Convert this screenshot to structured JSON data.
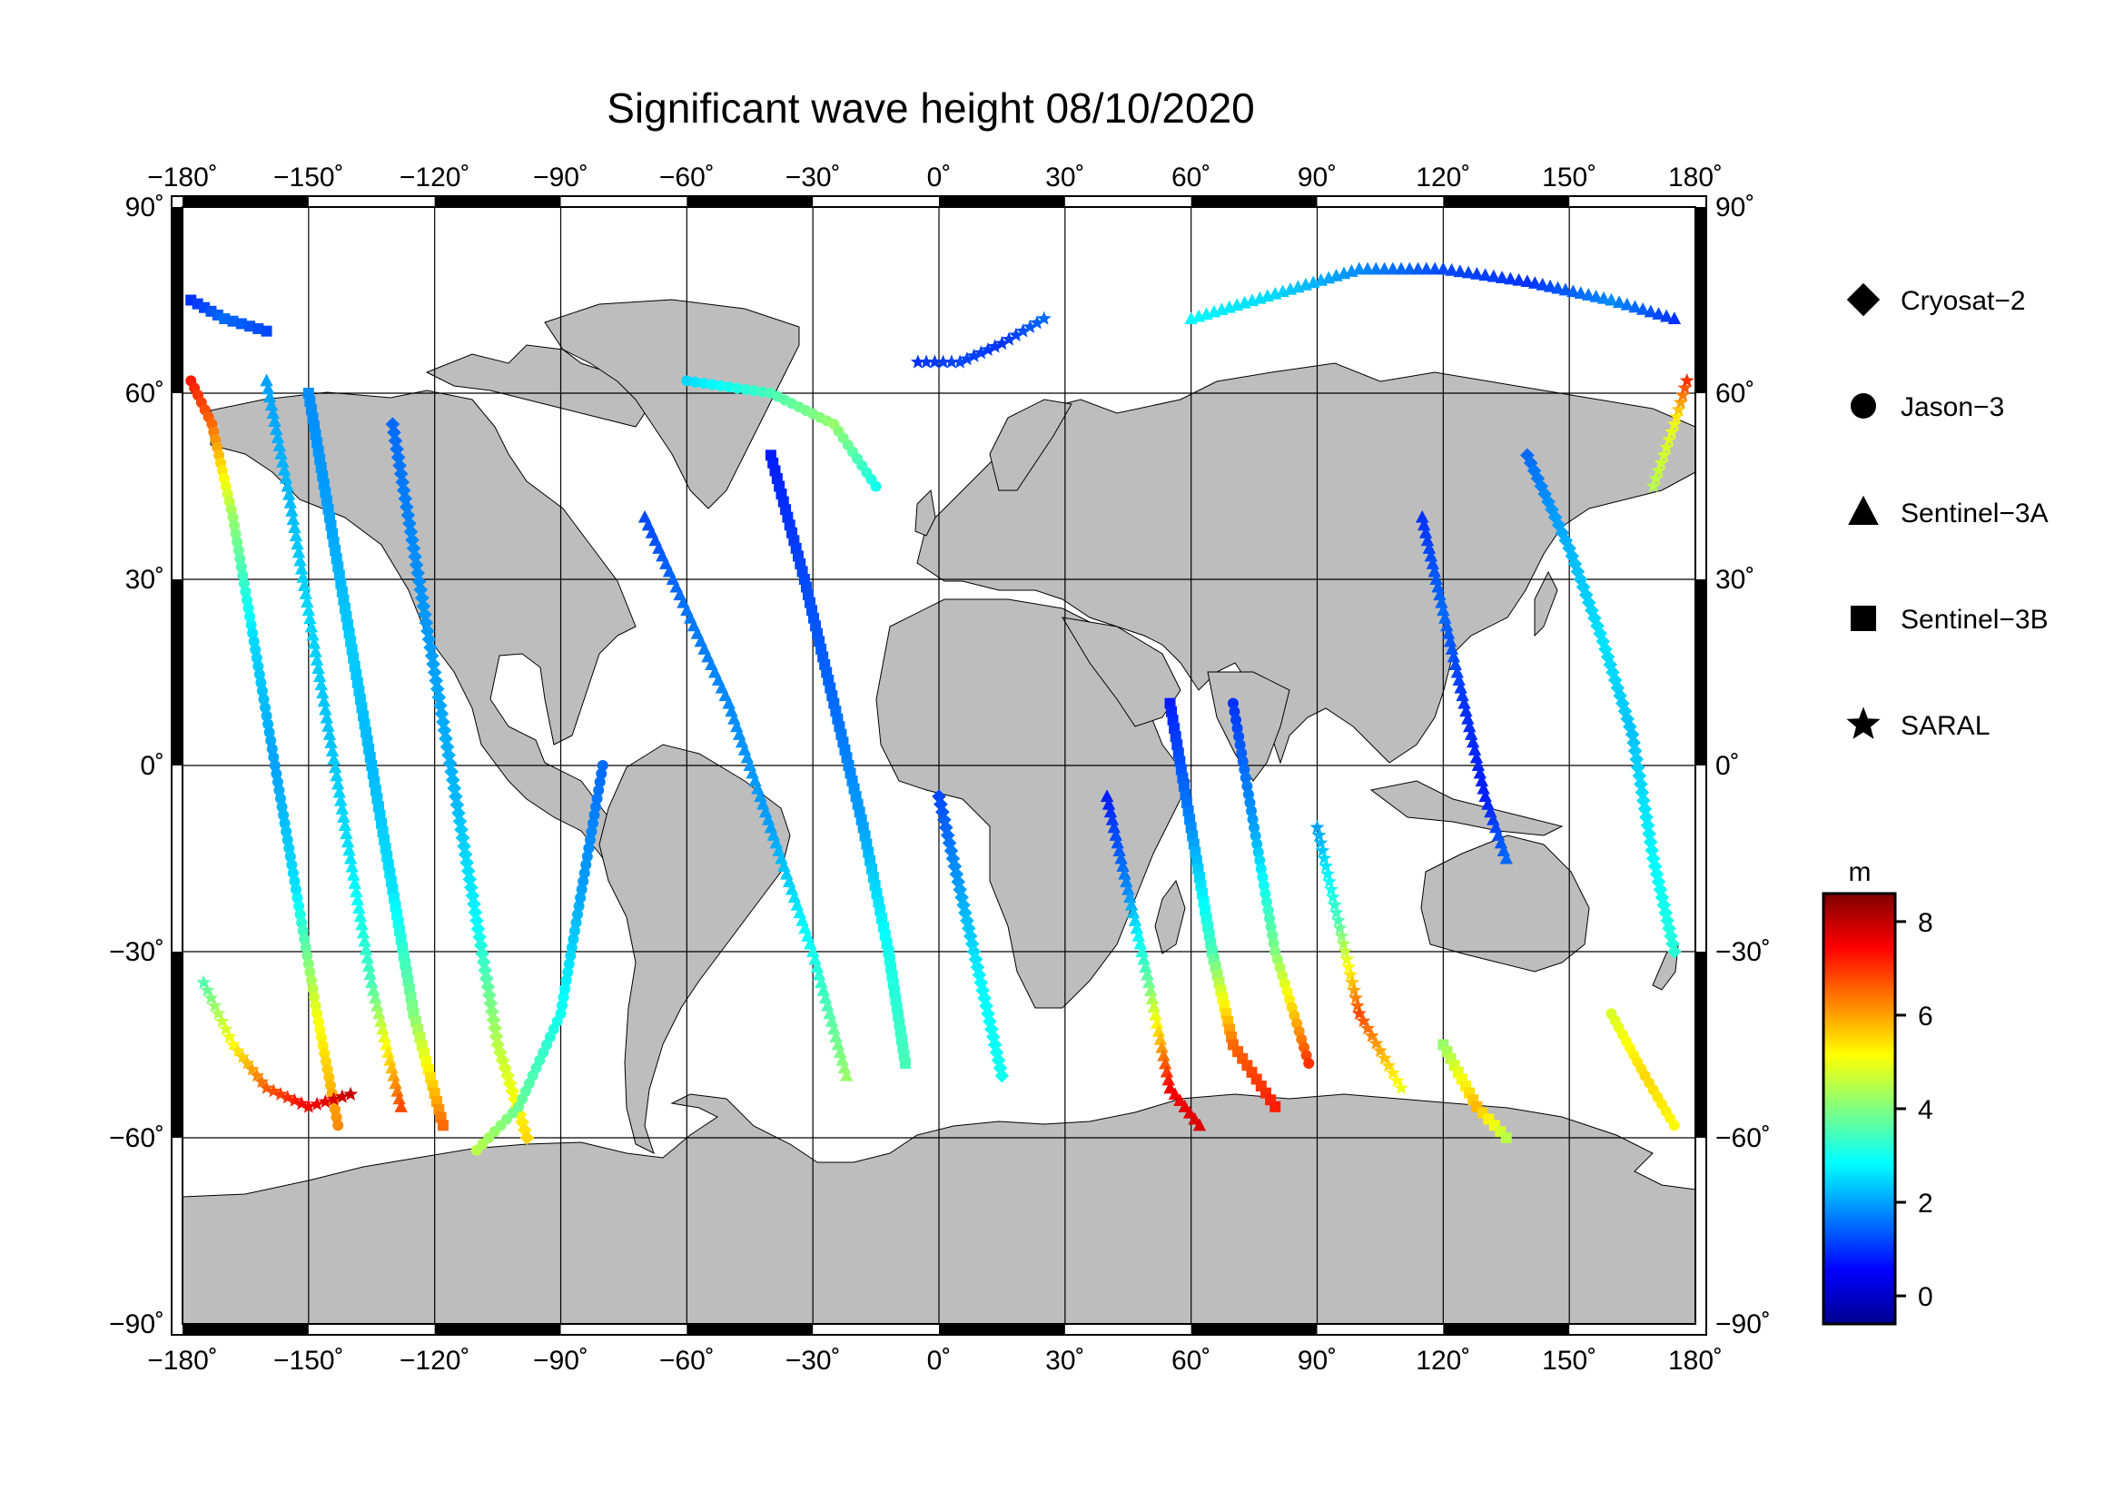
{
  "title": "Significant wave height 08/10/2020",
  "map": {
    "lon_ticks": [
      "−180˚",
      "−150˚",
      "−120˚",
      "−90˚",
      "−60˚",
      "−30˚",
      "0˚",
      "30˚",
      "60˚",
      "90˚",
      "120˚",
      "150˚",
      "180˚"
    ],
    "lat_ticks": [
      "90˚",
      "60˚",
      "30˚",
      "0˚",
      "−30˚",
      "−60˚",
      "−90˚"
    ],
    "land_color": "#bdbdbd",
    "ocean_color": "#ffffff"
  },
  "legend": {
    "items": [
      {
        "label": "Cryosat−2",
        "symbol": "diamond"
      },
      {
        "label": "Jason−3",
        "symbol": "circle"
      },
      {
        "label": "Sentinel−3A",
        "symbol": "triangle"
      },
      {
        "label": "Sentinel−3B",
        "symbol": "square"
      },
      {
        "label": "SARAL",
        "symbol": "star"
      }
    ]
  },
  "colorbar": {
    "unit": "m",
    "ticks": [
      "8",
      "6",
      "4",
      "2",
      "0"
    ],
    "min": -0.6,
    "max": 8.6,
    "colors": [
      "#00008f",
      "#0000ff",
      "#0080ff",
      "#00ffff",
      "#80ff80",
      "#ffff00",
      "#ff8000",
      "#ff0000",
      "#800000"
    ]
  },
  "chart_data": {
    "type": "map",
    "title": "Significant wave height 08/10/2020",
    "projection": "equirectangular",
    "xlim": [
      -180,
      180
    ],
    "ylim": [
      -90,
      90
    ],
    "variable": "significant wave height",
    "unit": "m",
    "satellites": [
      "Cryosat−2",
      "Jason−3",
      "Sentinel−3A",
      "Sentinel−3B",
      "SARAL"
    ],
    "colorbar_range": [
      -0.6,
      8.6
    ],
    "tracks": [
      {
        "satellite": "Jason−3",
        "points": [
          [
            -178,
            62,
            7.2
          ],
          [
            -173,
            55,
            6.5
          ],
          [
            -168,
            40,
            4.2
          ],
          [
            -163,
            20,
            2.5
          ],
          [
            -158,
            0,
            2.0
          ],
          [
            -153,
            -20,
            2.6
          ],
          [
            -148,
            -40,
            5.0
          ],
          [
            -143,
            -58,
            6.2
          ]
        ]
      },
      {
        "satellite": "Sentinel−3A",
        "points": [
          [
            -160,
            62,
            2
          ],
          [
            -155,
            45,
            2.2
          ],
          [
            -150,
            25,
            2.5
          ],
          [
            -145,
            5,
            2.3
          ],
          [
            -140,
            -15,
            2.6
          ],
          [
            -135,
            -35,
            3.5
          ],
          [
            -128,
            -55,
            6.8
          ]
        ]
      },
      {
        "satellite": "Sentinel−3B",
        "points": [
          [
            -150,
            60,
            1.8
          ],
          [
            -145,
            40,
            2.0
          ],
          [
            -140,
            20,
            2.4
          ],
          [
            -135,
            0,
            2.2
          ],
          [
            -130,
            -20,
            2.6
          ],
          [
            -125,
            -40,
            4.0
          ],
          [
            -118,
            -58,
            6.5
          ]
        ]
      },
      {
        "satellite": "SARAL",
        "points": [
          [
            -175,
            -35,
            3.6
          ],
          [
            -168,
            -45,
            5.2
          ],
          [
            -160,
            -52,
            6.6
          ],
          [
            -150,
            -55,
            7.5
          ],
          [
            -140,
            -53,
            8.0
          ]
        ]
      },
      {
        "satellite": "Cryosat−2",
        "points": [
          [
            -130,
            55,
            1.5
          ],
          [
            -125,
            35,
            1.8
          ],
          [
            -120,
            15,
            2.0
          ],
          [
            -115,
            -5,
            2.2
          ],
          [
            -110,
            -25,
            2.8
          ],
          [
            -105,
            -45,
            4.5
          ],
          [
            -98,
            -60,
            5.5
          ]
        ]
      },
      {
        "satellite": "Jason−3",
        "points": [
          [
            -110,
            -62,
            4.5
          ],
          [
            -100,
            -55,
            3.8
          ],
          [
            -90,
            -40,
            3.0
          ],
          [
            -85,
            -20,
            2.0
          ],
          [
            -80,
            0,
            1.5
          ]
        ]
      },
      {
        "satellite": "Sentinel−3A",
        "points": [
          [
            -70,
            40,
            1.2
          ],
          [
            -60,
            25,
            1.6
          ],
          [
            -50,
            10,
            1.8
          ],
          [
            -40,
            -10,
            2.0
          ],
          [
            -30,
            -30,
            3.0
          ],
          [
            -22,
            -50,
            4.2
          ]
        ]
      },
      {
        "satellite": "Sentinel−3B",
        "points": [
          [
            -40,
            50,
            0.8
          ],
          [
            -32,
            30,
            1.2
          ],
          [
            -25,
            10,
            1.5
          ],
          [
            -18,
            -10,
            2.0
          ],
          [
            -12,
            -30,
            3.0
          ],
          [
            -8,
            -48,
            3.5
          ]
        ]
      },
      {
        "satellite": "SARAL",
        "points": [
          [
            -5,
            65,
            1.0
          ],
          [
            5,
            65,
            1.2
          ],
          [
            15,
            68,
            1.0
          ],
          [
            25,
            72,
            1.5
          ]
        ]
      },
      {
        "satellite": "Jason−3",
        "points": [
          [
            -60,
            62,
            2.5
          ],
          [
            -40,
            60,
            3.5
          ],
          [
            -25,
            55,
            4.2
          ],
          [
            -15,
            45,
            3.0
          ]
        ]
      },
      {
        "satellite": "Cryosat−2",
        "points": [
          [
            0,
            -5,
            1.2
          ],
          [
            5,
            -20,
            2.0
          ],
          [
            10,
            -35,
            2.8
          ],
          [
            15,
            -50,
            3.0
          ]
        ]
      },
      {
        "satellite": "Sentinel−3A",
        "points": [
          [
            40,
            -5,
            0.8
          ],
          [
            45,
            -20,
            1.8
          ],
          [
            50,
            -35,
            3.8
          ],
          [
            55,
            -52,
            7.5
          ],
          [
            62,
            -58,
            7.8
          ]
        ]
      },
      {
        "satellite": "Sentinel−3B",
        "points": [
          [
            55,
            10,
            0.8
          ],
          [
            60,
            -10,
            1.8
          ],
          [
            65,
            -30,
            3.5
          ],
          [
            70,
            -45,
            6.5
          ],
          [
            80,
            -55,
            7.2
          ]
        ]
      },
      {
        "satellite": "Jason−3",
        "points": [
          [
            70,
            10,
            1.0
          ],
          [
            75,
            -10,
            2.0
          ],
          [
            80,
            -30,
            4.0
          ],
          [
            88,
            -48,
            7.0
          ]
        ]
      },
      {
        "satellite": "SARAL",
        "points": [
          [
            90,
            -10,
            2.0
          ],
          [
            95,
            -25,
            3.5
          ],
          [
            100,
            -40,
            6.8
          ],
          [
            110,
            -52,
            5.0
          ]
        ]
      },
      {
        "satellite": "Sentinel−3A",
        "points": [
          [
            115,
            40,
            1.0
          ],
          [
            120,
            25,
            1.5
          ],
          [
            125,
            10,
            1.0
          ],
          [
            130,
            -5,
            0.8
          ],
          [
            135,
            -15,
            1.5
          ]
        ]
      },
      {
        "satellite": "Sentinel−3B",
        "points": [
          [
            120,
            -45,
            4.2
          ],
          [
            128,
            -55,
            5.8
          ],
          [
            135,
            -60,
            4.5
          ]
        ]
      },
      {
        "satellite": "Cryosat−2",
        "points": [
          [
            140,
            50,
            1.5
          ],
          [
            150,
            35,
            2.2
          ],
          [
            158,
            20,
            2.6
          ],
          [
            165,
            5,
            2.3
          ],
          [
            170,
            -15,
            2.8
          ],
          [
            175,
            -30,
            3.2
          ]
        ]
      },
      {
        "satellite": "Jason−3",
        "points": [
          [
            160,
            -40,
            4.8
          ],
          [
            168,
            -50,
            5.5
          ],
          [
            175,
            -58,
            5.2
          ]
        ]
      },
      {
        "satellite": "SARAL",
        "points": [
          [
            170,
            45,
            4.5
          ],
          [
            175,
            55,
            5.0
          ],
          [
            178,
            62,
            7.0
          ]
        ]
      },
      {
        "satellite": "Sentinel−3A",
        "points": [
          [
            60,
            72,
            2.8
          ],
          [
            80,
            76,
            2.5
          ],
          [
            100,
            80,
            1.8
          ],
          [
            120,
            80,
            1.2
          ],
          [
            140,
            78,
            1.0
          ],
          [
            160,
            75,
            1.8
          ],
          [
            175,
            72,
            1.0
          ]
        ]
      },
      {
        "satellite": "Sentinel−3B",
        "points": [
          [
            -178,
            75,
            1.0
          ],
          [
            -170,
            72,
            1.5
          ],
          [
            -160,
            70,
            1.2
          ]
        ]
      }
    ]
  }
}
